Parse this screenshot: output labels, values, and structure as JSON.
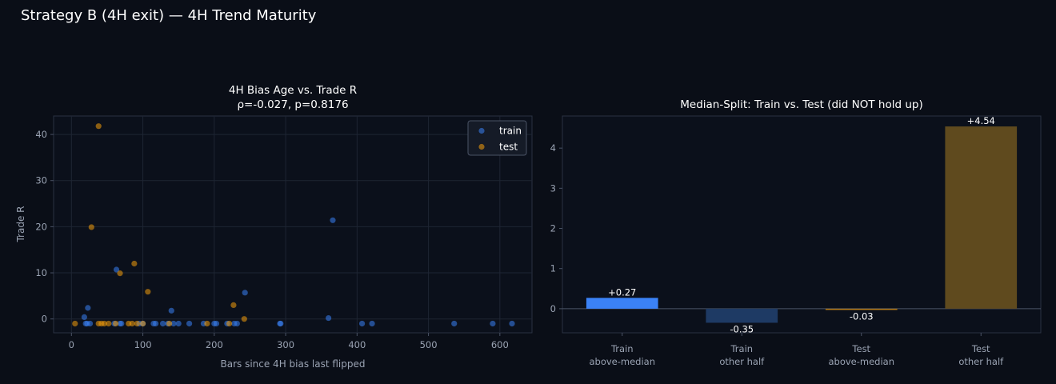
{
  "figure": {
    "title": "Strategy B (4H exit) — 4H Trend Maturity"
  },
  "chart_data": [
    {
      "type": "scatter",
      "title": "4H Bias Age vs. Trade R",
      "subtitle": "ρ=-0.027, p=0.8176",
      "xlabel": "Bars since 4H bias last flipped",
      "ylabel": "Trade R",
      "xlim": [
        -25,
        645
      ],
      "ylim": [
        -3,
        44
      ],
      "xticks": [
        0,
        100,
        200,
        300,
        400,
        500,
        600
      ],
      "yticks": [
        0,
        10,
        20,
        30,
        40
      ],
      "grid": true,
      "legend": "top-right",
      "series": [
        {
          "name": "train",
          "color": "#3b82f6",
          "points": [
            [
              18,
              0.4
            ],
            [
              20,
              -1
            ],
            [
              22,
              -1
            ],
            [
              23,
              2.4
            ],
            [
              26,
              -1
            ],
            [
              60,
              -1
            ],
            [
              63,
              10.7
            ],
            [
              68,
              -1
            ],
            [
              70,
              -1
            ],
            [
              95,
              -1
            ],
            [
              100,
              -1
            ],
            [
              115,
              -1
            ],
            [
              118,
              -1
            ],
            [
              128,
              -1
            ],
            [
              135,
              -1
            ],
            [
              140,
              1.8
            ],
            [
              143,
              -1
            ],
            [
              150,
              -1
            ],
            [
              165,
              -1
            ],
            [
              185,
              -1
            ],
            [
              200,
              -1
            ],
            [
              203,
              -1
            ],
            [
              218,
              -1
            ],
            [
              228,
              -1
            ],
            [
              232,
              -1
            ],
            [
              243,
              5.7
            ],
            [
              292,
              -1
            ],
            [
              293,
              -1
            ],
            [
              360,
              0.2
            ],
            [
              366,
              21.4
            ],
            [
              407,
              -1
            ],
            [
              421,
              -1
            ],
            [
              536,
              -1
            ],
            [
              590,
              -1
            ],
            [
              617,
              -1
            ]
          ]
        },
        {
          "name": "test",
          "color": "#f59e0b",
          "points": [
            [
              5,
              -1
            ],
            [
              28,
              19.9
            ],
            [
              38,
              -1
            ],
            [
              38,
              41.8
            ],
            [
              42,
              -1
            ],
            [
              46,
              -1
            ],
            [
              52,
              -1
            ],
            [
              62,
              -1
            ],
            [
              68,
              9.9
            ],
            [
              80,
              -1
            ],
            [
              85,
              -1
            ],
            [
              88,
              12
            ],
            [
              92,
              -1
            ],
            [
              100,
              -1
            ],
            [
              107,
              5.9
            ],
            [
              137,
              -1
            ],
            [
              190,
              -1
            ],
            [
              221,
              -1
            ],
            [
              227,
              3
            ],
            [
              242,
              0
            ]
          ]
        }
      ]
    },
    {
      "type": "bar",
      "title": "Median-Split: Train vs. Test (did NOT hold up)",
      "categories": [
        [
          "Train",
          "above-median"
        ],
        [
          "Train",
          "other half"
        ],
        [
          "Test",
          "above-median"
        ],
        [
          "Test",
          "other half"
        ]
      ],
      "values": [
        0.27,
        -0.35,
        -0.03,
        4.54
      ],
      "value_labels": [
        "+0.27",
        "-0.35",
        "-0.03",
        "+4.54"
      ],
      "colors": [
        "#3b82f6",
        "#1e3a64",
        "#b57a18",
        "#5f4a1e"
      ],
      "ylim": [
        -0.6,
        4.8
      ],
      "yticks": [
        0,
        1,
        2,
        3,
        4
      ],
      "grid": false,
      "zero_line": true
    }
  ]
}
